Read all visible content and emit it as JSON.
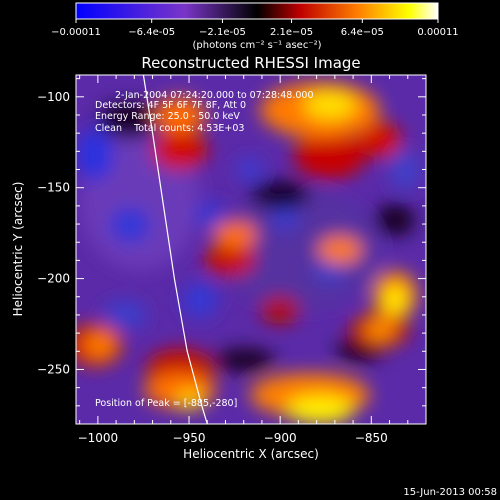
{
  "chart_data": {
    "type": "heatmap",
    "title": "Reconstructed RHESSI Image",
    "xlabel": "Heliocentric X (arcsec)",
    "ylabel": "Heliocentric Y (arcsec)",
    "xlim": [
      -1012,
      -820
    ],
    "ylim": [
      -280,
      -88
    ],
    "xticks": [
      -1000,
      -950,
      -900,
      -850
    ],
    "yticks": [
      -100,
      -150,
      -200,
      -250
    ],
    "colorbar": {
      "range": [
        -0.00011,
        0.00011
      ],
      "ticks": [
        {
          "value": -0.00011,
          "label": "-0.00011"
        },
        {
          "value": -6.4e-05,
          "label": "-6.4e-05"
        },
        {
          "value": -2.1e-05,
          "label": "-2.1e-05"
        },
        {
          "value": 2.1e-05,
          "label": "2.1e-05"
        },
        {
          "value": 6.4e-05,
          "label": "6.4e-05"
        },
        {
          "value": 0.00011,
          "label": "0.00011"
        }
      ],
      "unit_label": "(photons cm⁻² s⁻¹ asec⁻²)",
      "colors": [
        "#0000ff",
        "#7a35c8",
        "#000000",
        "#c00000",
        "#ff8000",
        "#ffff00",
        "#ffffff"
      ]
    },
    "annotations": [
      "2-Jan-2004 07:24:20.000 to 07:28:48.000",
      "Detectors: 4F 5F 6F 7F 8F, Att 0",
      "Energy Range: 25.0 - 50.0 keV",
      "Clean    Total counts: 4.53E+03"
    ],
    "peak_label": "Position of Peak = [-885,-280]",
    "limb": [
      [
        -975,
        -88
      ],
      [
        -970,
        -120
      ],
      [
        -964,
        -160
      ],
      [
        -958,
        -200
      ],
      [
        -951,
        -240
      ],
      [
        -943,
        -270
      ],
      [
        -940,
        -280
      ]
    ]
  },
  "footer": {
    "timestamp": "15-Jun-2013 00:58"
  }
}
